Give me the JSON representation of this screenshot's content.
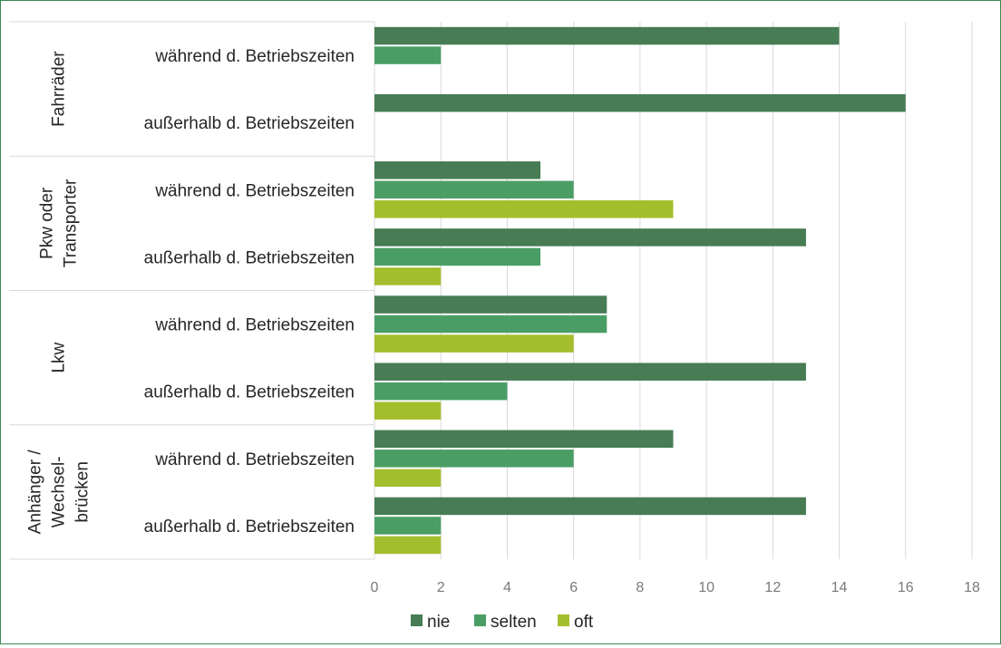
{
  "chart_data": {
    "type": "bar",
    "orientation": "horizontal",
    "groups": [
      {
        "label_lines": [
          "Fahrräder"
        ],
        "categories": [
          "während d. Betriebszeiten",
          "außerhalb d. Betriebszeiten"
        ]
      },
      {
        "label_lines": [
          "Pkw oder",
          "Transporter"
        ],
        "categories": [
          "während d. Betriebszeiten",
          "außerhalb d. Betriebszeiten"
        ]
      },
      {
        "label_lines": [
          "Lkw"
        ],
        "categories": [
          "während d. Betriebszeiten",
          "außerhalb d. Betriebszeiten"
        ]
      },
      {
        "label_lines": [
          "Anhänger /",
          "Wechsel-",
          "brücken"
        ],
        "categories": [
          "während d. Betriebszeiten",
          "außerhalb d. Betriebszeiten"
        ]
      }
    ],
    "series": [
      {
        "name": "nie",
        "color": "#477c54",
        "values": [
          14,
          16,
          5,
          13,
          7,
          13,
          9,
          13
        ]
      },
      {
        "name": "selten",
        "color": "#4a9e65",
        "values": [
          2,
          0,
          6,
          5,
          7,
          4,
          6,
          2
        ]
      },
      {
        "name": "oft",
        "color": "#a5be2e",
        "values": [
          0,
          0,
          9,
          2,
          6,
          2,
          2,
          2
        ]
      }
    ],
    "xlim": [
      0,
      18
    ],
    "xticks": [
      "0",
      "2",
      "4",
      "6",
      "8",
      "10",
      "12",
      "14",
      "16",
      "18"
    ],
    "grid": true,
    "legend_position": "bottom",
    "title": "",
    "xlabel": "",
    "ylabel": ""
  }
}
